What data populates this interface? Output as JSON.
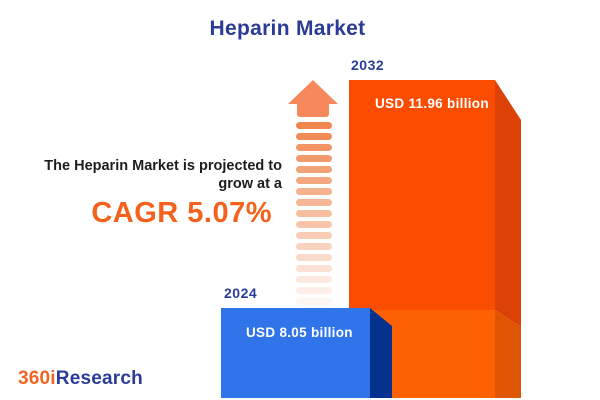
{
  "title": "Heparin Market",
  "annotation": {
    "line1": "The Heparin Market is projected to",
    "line2": "grow at a",
    "cagr": "CAGR 5.07%"
  },
  "bars": [
    {
      "year": "2024",
      "label": "USD 8.05 billion",
      "value_usd_billion": 8.05,
      "color": "#2F74E8"
    },
    {
      "year": "2032",
      "label": "USD 11.96 billion",
      "value_usd_billion": 11.96,
      "color": "#FB4D02"
    }
  ],
  "logo": {
    "part1": "360i",
    "part2": "Research"
  },
  "icons": {
    "growth_arrow": "upward-striped-fading-arrow"
  },
  "colors": {
    "title_blue": "#2B3C97",
    "year_label_blue": "#283D9B",
    "annotation_text": "#1D1D1D",
    "cagr_orange": "#F4611D",
    "logo_orange": "#F26524",
    "logo_blue": "#2B3C97",
    "bar_2024_face": "#2F74E8",
    "bar_2024_side": "#04328E",
    "bar_2032_face": "#FB4D02",
    "bar_2032_side": "#DC4105",
    "bar_2032_base_face": "#FD6102",
    "bar_2032_base_side": "#E05504",
    "arrow_head": "#F5895D",
    "arrow_stripe": "#F0854E",
    "background": "#FFFFFF"
  },
  "chart_data": {
    "type": "bar",
    "title": "Heparin Market",
    "categories": [
      "2024",
      "2032"
    ],
    "values": [
      8.05,
      11.96
    ],
    "unit": "USD billion",
    "value_labels": [
      "USD 8.05 billion",
      "USD 11.96 billion"
    ],
    "cagr_text": "CAGR 5.07%",
    "cagr_percent": 5.07,
    "orientation": "vertical",
    "style": "3d-boxes",
    "grid": false,
    "legend": false,
    "annotation": "The Heparin Market is projected to grow at a CAGR 5.07%"
  }
}
